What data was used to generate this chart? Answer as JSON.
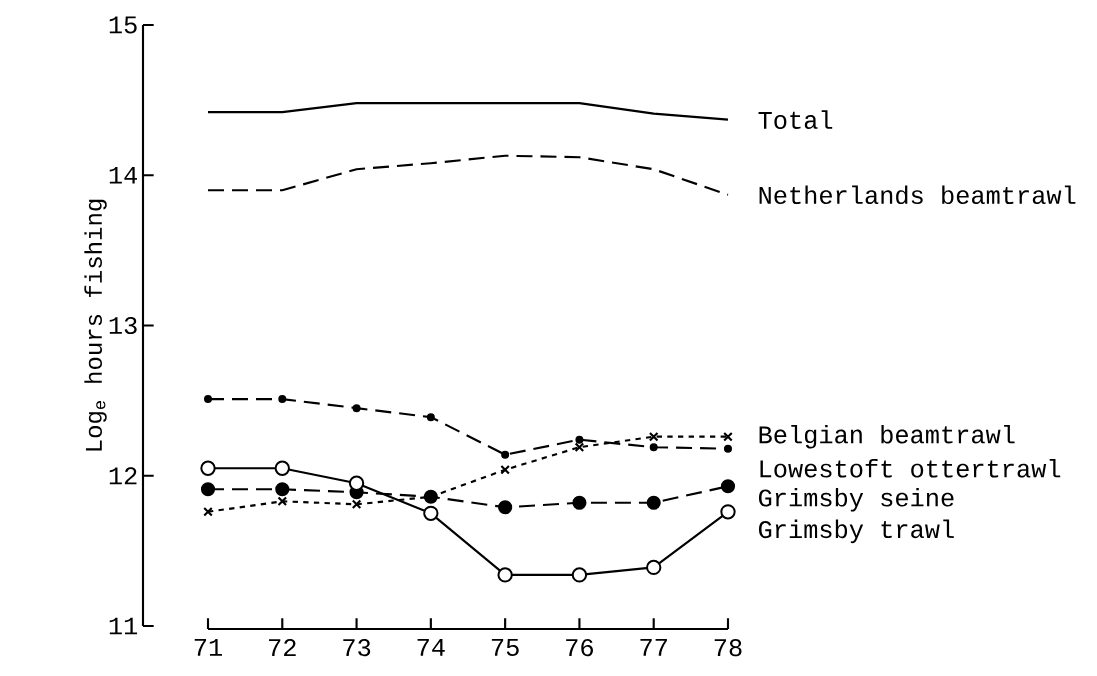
{
  "chart_data": {
    "type": "line",
    "ylabel": "Log$_{e}$ hours fishing",
    "x": [
      71,
      72,
      73,
      74,
      75,
      76,
      77,
      78
    ],
    "xlim": [
      71,
      78
    ],
    "xticks": [
      71,
      72,
      73,
      74,
      75,
      76,
      77,
      78
    ],
    "ylim": [
      11,
      15
    ],
    "yticks": [
      11,
      12,
      13,
      14,
      15
    ],
    "grid": false,
    "series": [
      {
        "name": "Total",
        "color": "#000000",
        "line_style": "solid",
        "marker": "none",
        "values": [
          14.42,
          14.42,
          14.48,
          14.48,
          14.48,
          14.48,
          14.41,
          14.37
        ]
      },
      {
        "name": "Netherlands beamtrawl",
        "color": "#000000",
        "line_style": "dashed",
        "marker": "none",
        "values": [
          13.9,
          13.9,
          14.04,
          14.08,
          14.13,
          14.12,
          14.04,
          13.87
        ]
      },
      {
        "name": "Belgian beamtrawl",
        "color": "#000000",
        "line_style": "dotted",
        "marker": "cross",
        "values": [
          11.76,
          11.83,
          11.81,
          11.86,
          12.04,
          12.19,
          12.26,
          12.26
        ]
      },
      {
        "name": "Lowestoft ottertrawl",
        "color": "#000000",
        "line_style": "dashed",
        "marker": "dot",
        "values": [
          12.51,
          12.51,
          12.45,
          12.39,
          12.14,
          12.24,
          12.19,
          12.18
        ]
      },
      {
        "name": "Grimsby seine",
        "color": "#000000",
        "line_style": "dashed",
        "marker": "circle",
        "values": [
          11.91,
          11.91,
          11.89,
          11.86,
          11.79,
          11.82,
          11.82,
          11.93
        ]
      },
      {
        "name": "Grimsby trawl",
        "color": "#000000",
        "line_style": "solid",
        "marker": "circle-open",
        "values": [
          12.05,
          12.05,
          11.95,
          11.75,
          11.34,
          11.34,
          11.39,
          11.76
        ]
      }
    ]
  }
}
